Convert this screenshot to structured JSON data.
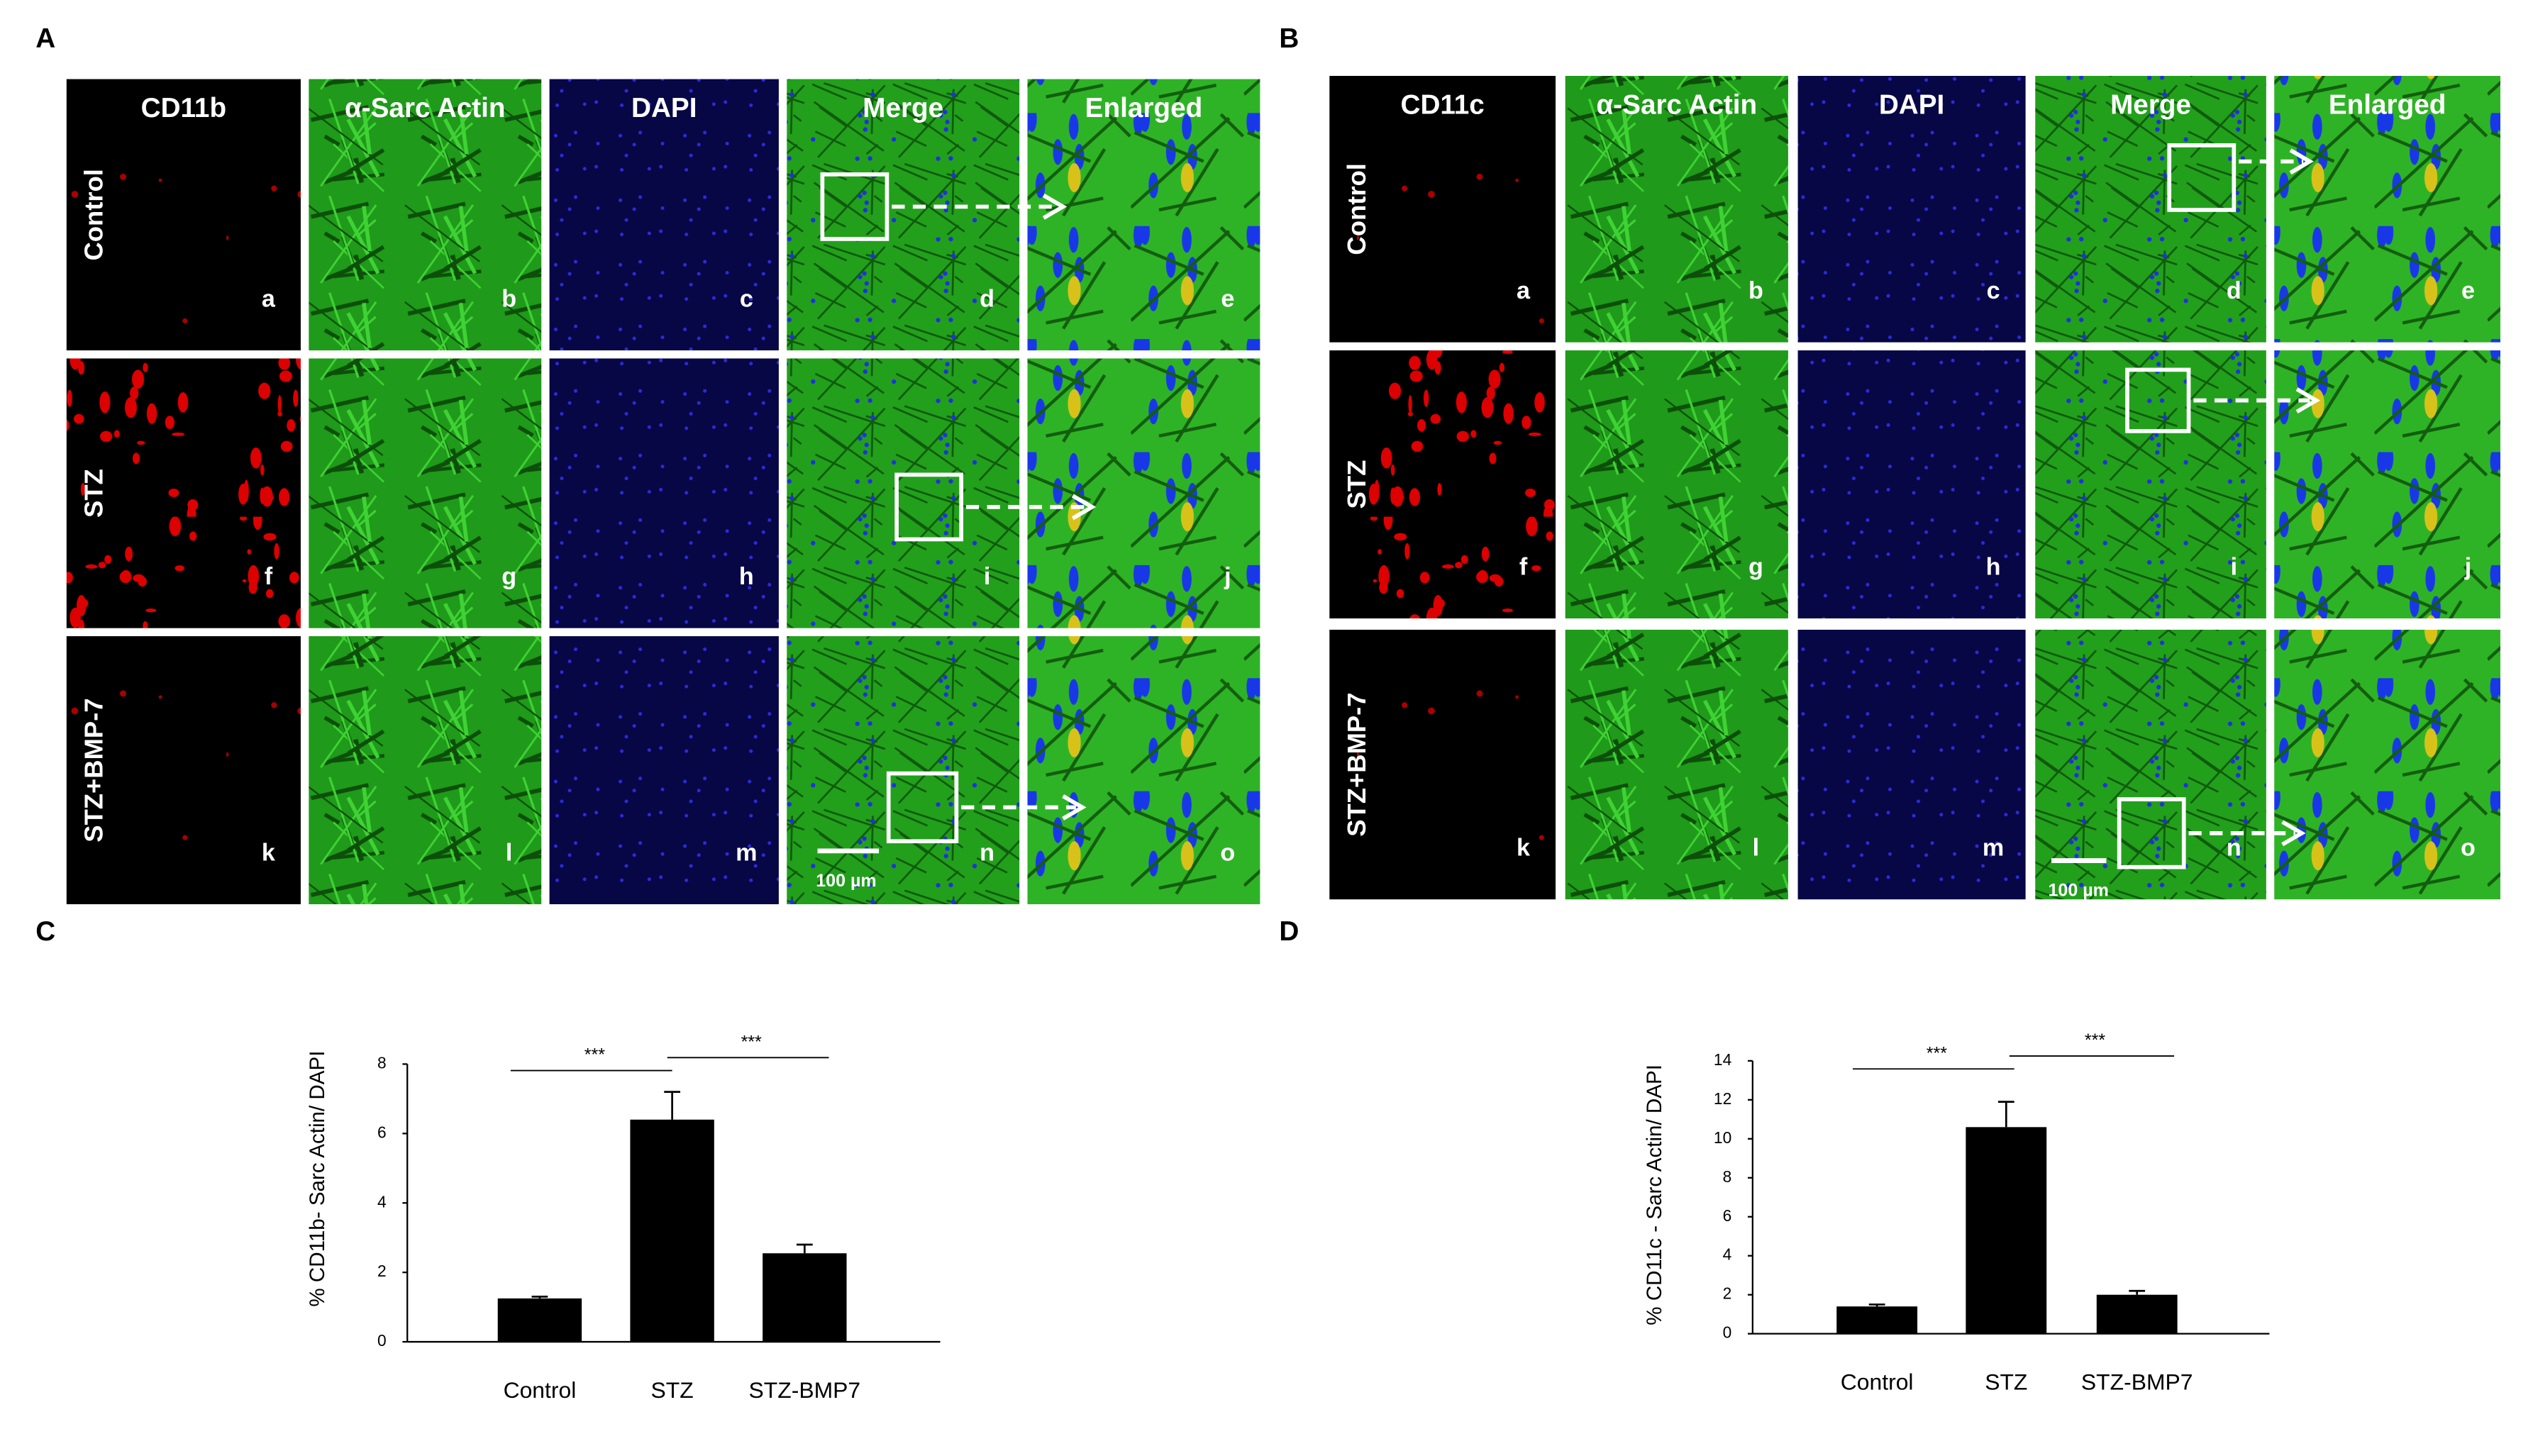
{
  "panels": [
    {
      "label": "A",
      "columns": [
        "CD11b",
        "α-Sarc Actin",
        "DAPI",
        "Merge",
        "Enlarged"
      ],
      "rows": [
        "Control",
        "STZ",
        "STZ+BMP-7"
      ],
      "letters": [
        "a",
        "b",
        "c",
        "d",
        "e",
        "f",
        "g",
        "h",
        "i",
        "j",
        "k",
        "l",
        "m",
        "n",
        "o"
      ],
      "scale_bar": "100 µm"
    },
    {
      "label": "B",
      "columns": [
        "CD11c",
        "α-Sarc Actin",
        "DAPI",
        "Merge",
        "Enlarged"
      ],
      "rows": [
        "Control",
        "STZ",
        "STZ+BMP-7"
      ],
      "letters": [
        "a",
        "b",
        "c",
        "d",
        "e",
        "f",
        "g",
        "h",
        "i",
        "j",
        "k",
        "l",
        "m",
        "n",
        "o"
      ],
      "scale_bar": "100 µm"
    }
  ],
  "chart_data": [
    {
      "label": "C",
      "type": "bar",
      "y_label": "% CD11b- Sarc Actin/ DAPI",
      "categories": [
        "Control",
        "STZ",
        "STZ-BMP7"
      ],
      "values": [
        1.25,
        6.4,
        2.55
      ],
      "errors": [
        0.05,
        0.8,
        0.25
      ],
      "color": "#000000",
      "ylim": [
        0,
        8
      ],
      "yticks": [
        0,
        2,
        4,
        6,
        8
      ],
      "significance": [
        "***",
        "***"
      ]
    },
    {
      "label": "D",
      "type": "bar",
      "y_label": "% CD11c - Sarc Actin/ DAPI",
      "categories": [
        "Control",
        "STZ",
        "STZ-BMP7"
      ],
      "values": [
        1.4,
        10.6,
        2.0
      ],
      "errors": [
        0.1,
        1.3,
        0.2
      ],
      "color": "#000000",
      "ylim": [
        0,
        14
      ],
      "yticks": [
        0,
        2,
        4,
        6,
        8,
        10,
        12,
        14
      ],
      "significance": [
        "***",
        "***"
      ]
    }
  ]
}
